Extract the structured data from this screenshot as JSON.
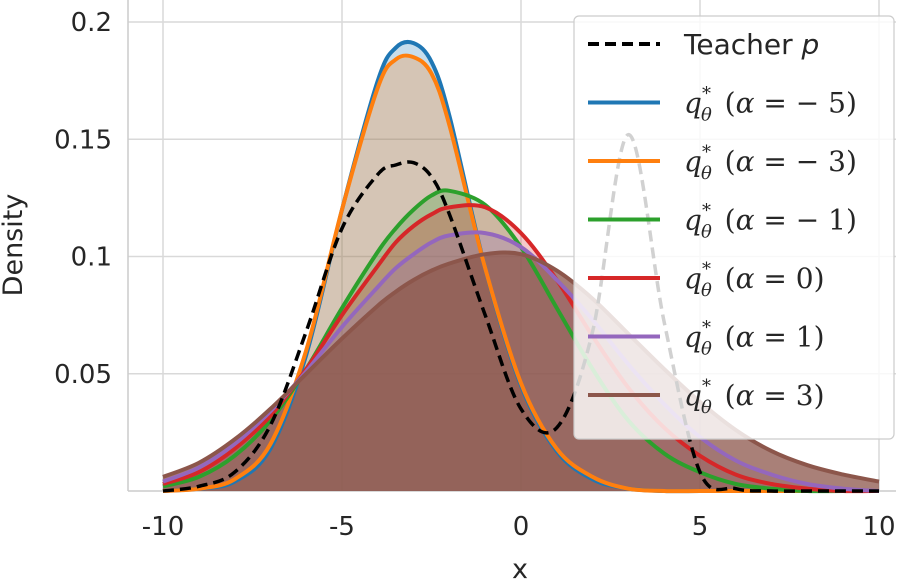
{
  "chart_data": {
    "type": "line",
    "xlabel": "x",
    "ylabel": "Density",
    "xlim": [
      -10,
      10
    ],
    "ylim": [
      0,
      0.2
    ],
    "grid": true,
    "legend_position": "top-right",
    "x_ticks": [
      -10,
      -5,
      0,
      5,
      10
    ],
    "x_tick_labels": [
      "-10",
      "-5",
      "0",
      "5",
      "10"
    ],
    "y_ticks": [
      0.05,
      0.1,
      0.15,
      0.2
    ],
    "y_tick_labels": [
      "0.05",
      "0.1",
      "0.15",
      "0.2"
    ],
    "x": [
      -10,
      -9,
      -8,
      -7,
      -6,
      -5,
      -4,
      -3.5,
      -3,
      -2.5,
      -2,
      -1,
      0,
      1,
      2,
      3,
      4,
      5,
      6,
      7,
      8,
      9,
      10
    ],
    "series": [
      {
        "name": "Teacher p",
        "label_main": "Teacher ",
        "label_italic": "p",
        "color": "#000000",
        "dashed": true,
        "fill": false,
        "values": [
          0.0,
          0.002,
          0.008,
          0.028,
          0.068,
          0.112,
          0.135,
          0.139,
          0.14,
          0.134,
          0.118,
          0.075,
          0.035,
          0.027,
          0.068,
          0.152,
          0.072,
          0.008,
          0.001,
          0.0,
          0.0,
          0.0,
          0.0
        ]
      },
      {
        "name": "q*θ (α = −5)",
        "label_alpha": "= − 5",
        "color": "#1f77b4",
        "dashed": false,
        "fill": true,
        "fill_opacity": 0.25,
        "values": [
          0.0,
          0.001,
          0.004,
          0.018,
          0.058,
          0.12,
          0.175,
          0.189,
          0.191,
          0.183,
          0.16,
          0.095,
          0.045,
          0.017,
          0.005,
          0.001,
          0.0,
          0.0,
          0.0,
          0.0,
          0.0,
          0.0,
          0.0
        ]
      },
      {
        "name": "q*θ (α = −3)",
        "label_alpha": "= − 3",
        "color": "#ff7f0e",
        "dashed": false,
        "fill": true,
        "fill_opacity": 0.25,
        "values": [
          0.0,
          0.001,
          0.005,
          0.02,
          0.06,
          0.12,
          0.172,
          0.184,
          0.185,
          0.178,
          0.156,
          0.095,
          0.046,
          0.018,
          0.006,
          0.001,
          0.0,
          0.0,
          0.0,
          0.0,
          0.0,
          0.0,
          0.0
        ]
      },
      {
        "name": "q*θ (α = −1)",
        "label_alpha": "= − 1",
        "color": "#2ca02c",
        "dashed": false,
        "fill": true,
        "fill_opacity": 0.25,
        "values": [
          0.002,
          0.006,
          0.015,
          0.03,
          0.052,
          0.078,
          0.102,
          0.112,
          0.12,
          0.126,
          0.128,
          0.122,
          0.104,
          0.078,
          0.052,
          0.03,
          0.016,
          0.008,
          0.003,
          0.001,
          0.0,
          0.0,
          0.0
        ]
      },
      {
        "name": "q*θ (α = 0)",
        "label_alpha": "= 0",
        "color": "#d62728",
        "dashed": false,
        "fill": true,
        "fill_opacity": 0.25,
        "values": [
          0.003,
          0.008,
          0.018,
          0.032,
          0.052,
          0.075,
          0.096,
          0.106,
          0.113,
          0.118,
          0.121,
          0.121,
          0.11,
          0.09,
          0.066,
          0.044,
          0.027,
          0.015,
          0.007,
          0.003,
          0.001,
          0.0,
          0.0
        ]
      },
      {
        "name": "q*θ (α = 1)",
        "label_alpha": "= 1",
        "color": "#9467bd",
        "dashed": false,
        "fill": true,
        "fill_opacity": 0.25,
        "values": [
          0.004,
          0.01,
          0.02,
          0.034,
          0.051,
          0.07,
          0.087,
          0.095,
          0.101,
          0.106,
          0.109,
          0.11,
          0.104,
          0.09,
          0.073,
          0.054,
          0.037,
          0.023,
          0.013,
          0.007,
          0.003,
          0.001,
          0.0
        ]
      },
      {
        "name": "q*θ (α = 3)",
        "label_alpha": "= 3",
        "color": "#8c564b",
        "dashed": false,
        "fill": true,
        "fill_opacity": 0.75,
        "values": [
          0.006,
          0.012,
          0.022,
          0.035,
          0.05,
          0.065,
          0.079,
          0.085,
          0.09,
          0.094,
          0.097,
          0.101,
          0.101,
          0.094,
          0.082,
          0.067,
          0.052,
          0.038,
          0.026,
          0.017,
          0.011,
          0.007,
          0.004
        ]
      }
    ]
  }
}
